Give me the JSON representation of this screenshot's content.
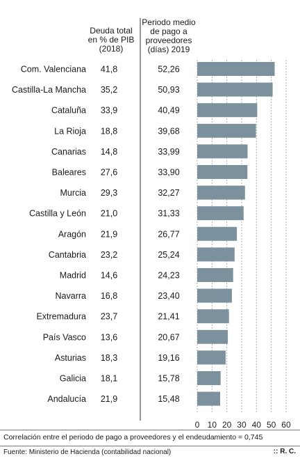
{
  "columns": {
    "debt_header": [
      "Deuda total",
      "en % de PIB",
      "(2018)"
    ],
    "payment_header": [
      "Periodo medio",
      "de pago a",
      "proveedores",
      "(días) 2019"
    ]
  },
  "chart_data": {
    "type": "bar",
    "orientation": "horizontal",
    "categories": [
      "Com. Valenciana",
      "Castilla-La Mancha",
      "Cataluña",
      "La Rioja",
      "Canarias",
      "Baleares",
      "Murcia",
      "Castilla y León",
      "Aragón",
      "Cantabria",
      "Madrid",
      "Navarra",
      "Extremadura",
      "País Vasco",
      "Asturias",
      "Galicia",
      "Andalucía"
    ],
    "debt_pct_gdp": [
      "41,8",
      "35,2",
      "33,9",
      "18,8",
      "14,8",
      "27,6",
      "29,3",
      "21,0",
      "21,9",
      "23,2",
      "14,6",
      "16,8",
      "23,7",
      "13,6",
      "18,3",
      "18,1",
      "21,9"
    ],
    "value_labels": [
      "52,26",
      "50,93",
      "40,49",
      "39,68",
      "33,99",
      "33,90",
      "32,27",
      "31,33",
      "26,77",
      "25,24",
      "24,23",
      "23,40",
      "21,41",
      "20,67",
      "19,16",
      "15,78",
      "15,48"
    ],
    "values": [
      52.26,
      50.93,
      40.49,
      39.68,
      33.99,
      33.9,
      32.27,
      31.33,
      26.77,
      25.24,
      24.23,
      23.4,
      21.41,
      20.67,
      19.16,
      15.78,
      15.48
    ],
    "xlim": [
      0,
      60
    ],
    "xticks": [
      0,
      10,
      20,
      30,
      40,
      50,
      60
    ],
    "grid": "vertical-dashed",
    "bar_color": "#7b919d"
  },
  "note": "Correlación entre el periodo de pago a proveedores y el endeudamiento = 0,745",
  "source": "Fuente: Ministerio de Hacienda (contabilidad nacional)",
  "credit": ":: R. C."
}
